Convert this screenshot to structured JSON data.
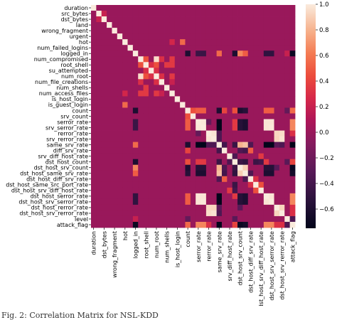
{
  "figure": {
    "caption": "Fig. 2: Correlation Matrix for NSL-KDD"
  },
  "chart_data": {
    "type": "heatmap",
    "title": "",
    "features": [
      "duration",
      "src_bytes",
      "dst_bytes",
      "land",
      "wrong_fragment",
      "urgent",
      "hot",
      "num_failed_logins",
      "logged_in",
      "num_compromised",
      "root_shell",
      "su_attempted",
      "num_root",
      "num_file_creations",
      "num_shells",
      "num_access_files",
      "is_host_login",
      "is_guest_login",
      "count",
      "srv_count",
      "serror_rate",
      "srv_serror_rate",
      "rerror_rate",
      "srv_rerror_rate",
      "same_srv_rate",
      "diff_srv_rate",
      "srv_diff_host_rate",
      "dst_host_count",
      "dst_host_srv_count",
      "dst_host_same_srv_rate",
      "dst_host_diff_srv_rate",
      "dst_host_same_src_port_rate",
      "dst_host_srv_diff_host_rate",
      "dst_host_serror_rate",
      "dst_host_srv_serror_rate",
      "dst_host_rerror_rate",
      "dst_host_srv_rerror_rate",
      "level",
      "attack_flag"
    ],
    "x_tick_labels": [
      "duration",
      "dst_bytes",
      "wrong_fragment",
      "hot",
      "logged_in",
      "root_shell",
      "num_root",
      "num_shells",
      "is_host_login",
      "count",
      "serror_rate",
      "rerror_rate",
      "same_srv_rate",
      "srv_diff_host_rate",
      "dst_host_srv_count",
      "dst_host_diff_srv_rate",
      "dst_host_srv_diff_host_rate",
      "dst_host_srv_serror_rate",
      "dst_host_srv_rerror_rate",
      "attack_flag"
    ],
    "x_tick_indices": [
      0,
      2,
      4,
      6,
      8,
      10,
      12,
      14,
      16,
      18,
      20,
      22,
      24,
      26,
      28,
      30,
      32,
      34,
      36,
      38
    ],
    "colorbar": {
      "min": -0.75,
      "max": 1.0,
      "ticks": [
        1.0,
        0.8,
        0.6,
        0.4,
        0.2,
        0.0,
        -0.2,
        -0.4,
        -0.6
      ],
      "tick_labels": [
        "1.0",
        "0.8",
        "0.6",
        "0.4",
        "0.2",
        "0.0",
        "−0.2",
        "−0.4",
        "−0.6"
      ]
    },
    "diagonal": 1.0,
    "background_value": 0.0,
    "correlations": [
      [
        "src_bytes",
        "dst_bytes",
        0.2
      ],
      [
        "hot",
        "is_guest_login",
        0.55
      ],
      [
        "hot",
        "num_access_files",
        0.25
      ],
      [
        "num_compromised",
        "root_shell",
        0.45
      ],
      [
        "num_compromised",
        "num_root",
        0.95
      ],
      [
        "num_compromised",
        "num_file_creations",
        0.3
      ],
      [
        "num_compromised",
        "num_access_files",
        0.35
      ],
      [
        "root_shell",
        "num_root",
        0.45
      ],
      [
        "root_shell",
        "su_attempted",
        0.3
      ],
      [
        "root_shell",
        "num_shells",
        0.35
      ],
      [
        "root_shell",
        "num_access_files",
        0.35
      ],
      [
        "su_attempted",
        "num_root",
        0.3
      ],
      [
        "num_root",
        "num_file_creations",
        0.3
      ],
      [
        "num_root",
        "num_access_files",
        0.35
      ],
      [
        "num_file_creations",
        "num_access_files",
        0.2
      ],
      [
        "logged_in",
        "count",
        -0.6
      ],
      [
        "logged_in",
        "serror_rate",
        -0.45
      ],
      [
        "logged_in",
        "srv_serror_rate",
        -0.45
      ],
      [
        "logged_in",
        "same_srv_rate",
        0.55
      ],
      [
        "logged_in",
        "dst_host_count",
        -0.6
      ],
      [
        "logged_in",
        "dst_host_srv_count",
        0.65
      ],
      [
        "logged_in",
        "dst_host_same_srv_rate",
        0.5
      ],
      [
        "logged_in",
        "dst_host_serror_rate",
        -0.5
      ],
      [
        "logged_in",
        "dst_host_srv_serror_rate",
        -0.5
      ],
      [
        "logged_in",
        "level",
        0.2
      ],
      [
        "logged_in",
        "attack_flag",
        -0.7
      ],
      [
        "count",
        "srv_count",
        0.45
      ],
      [
        "count",
        "serror_rate",
        0.5
      ],
      [
        "count",
        "srv_serror_rate",
        0.5
      ],
      [
        "count",
        "same_srv_rate",
        -0.6
      ],
      [
        "count",
        "diff_srv_rate",
        0.4
      ],
      [
        "count",
        "dst_host_count",
        0.45
      ],
      [
        "count",
        "dst_host_srv_count",
        -0.6
      ],
      [
        "count",
        "dst_host_same_srv_rate",
        -0.55
      ],
      [
        "count",
        "dst_host_serror_rate",
        0.5
      ],
      [
        "count",
        "dst_host_srv_serror_rate",
        0.5
      ],
      [
        "count",
        "attack_flag",
        0.55
      ],
      [
        "serror_rate",
        "srv_serror_rate",
        0.99
      ],
      [
        "serror_rate",
        "same_srv_rate",
        -0.75
      ],
      [
        "serror_rate",
        "dst_host_count",
        0.35
      ],
      [
        "serror_rate",
        "dst_host_srv_count",
        -0.55
      ],
      [
        "serror_rate",
        "dst_host_same_srv_rate",
        -0.6
      ],
      [
        "serror_rate",
        "dst_host_serror_rate",
        0.98
      ],
      [
        "serror_rate",
        "dst_host_srv_serror_rate",
        0.98
      ],
      [
        "serror_rate",
        "rerror_rate",
        -0.25
      ],
      [
        "serror_rate",
        "attack_flag",
        0.65
      ],
      [
        "srv_serror_rate",
        "same_srv_rate",
        -0.75
      ],
      [
        "srv_serror_rate",
        "dst_host_count",
        0.35
      ],
      [
        "srv_serror_rate",
        "dst_host_srv_count",
        -0.55
      ],
      [
        "srv_serror_rate",
        "dst_host_same_srv_rate",
        -0.6
      ],
      [
        "srv_serror_rate",
        "dst_host_serror_rate",
        0.98
      ],
      [
        "srv_serror_rate",
        "dst_host_srv_serror_rate",
        0.99
      ],
      [
        "srv_serror_rate",
        "attack_flag",
        0.65
      ],
      [
        "rerror_rate",
        "srv_rerror_rate",
        0.98
      ],
      [
        "rerror_rate",
        "dst_host_rerror_rate",
        0.93
      ],
      [
        "rerror_rate",
        "dst_host_srv_rerror_rate",
        0.95
      ],
      [
        "rerror_rate",
        "same_srv_rate",
        -0.35
      ],
      [
        "rerror_rate",
        "attack_flag",
        0.3
      ],
      [
        "srv_rerror_rate",
        "dst_host_rerror_rate",
        0.92
      ],
      [
        "srv_rerror_rate",
        "dst_host_srv_rerror_rate",
        0.97
      ],
      [
        "srv_rerror_rate",
        "same_srv_rate",
        -0.35
      ],
      [
        "same_srv_rate",
        "diff_srv_rate",
        -0.4
      ],
      [
        "same_srv_rate",
        "dst_host_count",
        -0.45
      ],
      [
        "same_srv_rate",
        "dst_host_srv_count",
        0.8
      ],
      [
        "same_srv_rate",
        "dst_host_same_srv_rate",
        0.85
      ],
      [
        "same_srv_rate",
        "dst_host_diff_srv_rate",
        -0.35
      ],
      [
        "same_srv_rate",
        "dst_host_serror_rate",
        -0.75
      ],
      [
        "same_srv_rate",
        "dst_host_srv_serror_rate",
        -0.75
      ],
      [
        "same_srv_rate",
        "dst_host_rerror_rate",
        -0.3
      ],
      [
        "same_srv_rate",
        "dst_host_srv_rerror_rate",
        -0.35
      ],
      [
        "same_srv_rate",
        "attack_flag",
        -0.75
      ],
      [
        "diff_srv_rate",
        "dst_host_diff_srv_rate",
        0.5
      ],
      [
        "diff_srv_rate",
        "dst_host_same_srv_rate",
        -0.4
      ],
      [
        "diff_srv_rate",
        "dst_host_srv_count",
        -0.35
      ],
      [
        "srv_diff_host_rate",
        "dst_host_srv_diff_host_rate",
        0.35
      ],
      [
        "srv_diff_host_rate",
        "dst_host_count",
        -0.35
      ],
      [
        "dst_host_count",
        "dst_host_srv_count",
        -0.45
      ],
      [
        "dst_host_count",
        "dst_host_same_srv_rate",
        -0.5
      ],
      [
        "dst_host_count",
        "dst_host_same_src_port_rate",
        -0.45
      ],
      [
        "dst_host_count",
        "dst_host_srv_diff_host_rate",
        -0.4
      ],
      [
        "dst_host_count",
        "dst_host_serror_rate",
        0.35
      ],
      [
        "dst_host_count",
        "attack_flag",
        0.4
      ],
      [
        "dst_host_srv_count",
        "dst_host_same_srv_rate",
        0.9
      ],
      [
        "dst_host_srv_count",
        "dst_host_serror_rate",
        -0.55
      ],
      [
        "dst_host_srv_count",
        "dst_host_srv_serror_rate",
        -0.55
      ],
      [
        "dst_host_srv_count",
        "dst_host_rerror_rate",
        -0.3
      ],
      [
        "dst_host_srv_count",
        "attack_flag",
        -0.7
      ],
      [
        "dst_host_same_srv_rate",
        "dst_host_diff_srv_rate",
        -0.35
      ],
      [
        "dst_host_same_srv_rate",
        "dst_host_serror_rate",
        -0.6
      ],
      [
        "dst_host_same_srv_rate",
        "dst_host_srv_serror_rate",
        -0.6
      ],
      [
        "dst_host_same_srv_rate",
        "attack_flag",
        -0.65
      ],
      [
        "dst_host_diff_srv_rate",
        "dst_host_same_src_port_rate",
        0.3
      ],
      [
        "dst_host_same_src_port_rate",
        "dst_host_srv_diff_host_rate",
        0.45
      ],
      [
        "dst_host_serror_rate",
        "dst_host_srv_serror_rate",
        0.98
      ],
      [
        "dst_host_serror_rate",
        "attack_flag",
        0.65
      ],
      [
        "dst_host_srv_serror_rate",
        "attack_flag",
        0.65
      ],
      [
        "dst_host_rerror_rate",
        "dst_host_srv_rerror_rate",
        0.92
      ],
      [
        "dst_host_rerror_rate",
        "attack_flag",
        0.3
      ],
      [
        "dst_host_srv_rerror_rate",
        "attack_flag",
        0.3
      ],
      [
        "level",
        "attack_flag",
        -0.35
      ],
      [
        "level",
        "count",
        -0.25
      ],
      [
        "level",
        "dst_host_count",
        -0.3
      ]
    ]
  }
}
